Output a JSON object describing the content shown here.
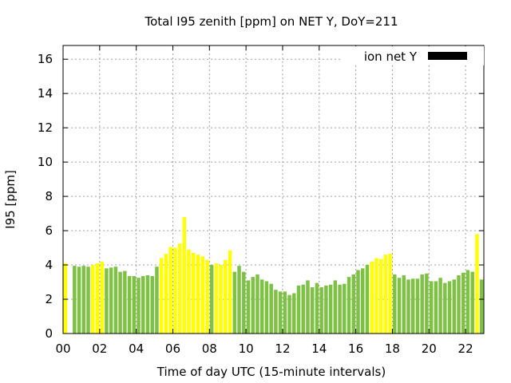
{
  "chart_data": {
    "type": "bar",
    "title": "Total I95 zenith [ppm] on NET Y, DoY=211",
    "xlabel": "Time of day UTC (15-minute intervals)",
    "ylabel": "I95 [ppm]",
    "ylim": [
      0,
      16.8
    ],
    "yticks": [
      0,
      2,
      4,
      6,
      8,
      10,
      12,
      14,
      16
    ],
    "xticks": [
      "00",
      "02",
      "04",
      "06",
      "08",
      "10",
      "12",
      "14",
      "16",
      "18",
      "20",
      "22"
    ],
    "xlim_hours": [
      0,
      22.75
    ],
    "grid": true,
    "legend": {
      "position": "top-right",
      "label": "ion net Y",
      "color": "#000000"
    },
    "colors": {
      "green": "#7dc243",
      "yellow": "#ffff00"
    },
    "bars": [
      {
        "h": 0.0,
        "v": 4.1,
        "c": "yellow"
      },
      {
        "h": 0.25,
        "v": 0.0,
        "c": "yellow"
      },
      {
        "h": 0.5,
        "v": 3.95,
        "c": "green"
      },
      {
        "h": 0.75,
        "v": 3.9,
        "c": "green"
      },
      {
        "h": 1.0,
        "v": 3.95,
        "c": "green"
      },
      {
        "h": 1.25,
        "v": 3.9,
        "c": "green"
      },
      {
        "h": 1.5,
        "v": 4.0,
        "c": "yellow"
      },
      {
        "h": 1.75,
        "v": 4.1,
        "c": "yellow"
      },
      {
        "h": 2.0,
        "v": 4.2,
        "c": "yellow"
      },
      {
        "h": 2.25,
        "v": 3.8,
        "c": "green"
      },
      {
        "h": 2.5,
        "v": 3.85,
        "c": "green"
      },
      {
        "h": 2.75,
        "v": 3.9,
        "c": "green"
      },
      {
        "h": 3.0,
        "v": 3.6,
        "c": "green"
      },
      {
        "h": 3.25,
        "v": 3.65,
        "c": "green"
      },
      {
        "h": 3.5,
        "v": 3.35,
        "c": "green"
      },
      {
        "h": 3.75,
        "v": 3.35,
        "c": "green"
      },
      {
        "h": 4.0,
        "v": 3.25,
        "c": "green"
      },
      {
        "h": 4.25,
        "v": 3.35,
        "c": "green"
      },
      {
        "h": 4.5,
        "v": 3.4,
        "c": "green"
      },
      {
        "h": 4.75,
        "v": 3.35,
        "c": "green"
      },
      {
        "h": 5.0,
        "v": 3.9,
        "c": "green"
      },
      {
        "h": 5.25,
        "v": 4.4,
        "c": "yellow"
      },
      {
        "h": 5.5,
        "v": 4.65,
        "c": "yellow"
      },
      {
        "h": 5.75,
        "v": 5.05,
        "c": "yellow"
      },
      {
        "h": 6.0,
        "v": 5.0,
        "c": "yellow"
      },
      {
        "h": 6.25,
        "v": 5.25,
        "c": "yellow"
      },
      {
        "h": 6.5,
        "v": 6.8,
        "c": "yellow"
      },
      {
        "h": 6.75,
        "v": 4.9,
        "c": "yellow"
      },
      {
        "h": 7.0,
        "v": 4.7,
        "c": "yellow"
      },
      {
        "h": 7.25,
        "v": 4.6,
        "c": "yellow"
      },
      {
        "h": 7.5,
        "v": 4.5,
        "c": "yellow"
      },
      {
        "h": 7.75,
        "v": 4.3,
        "c": "yellow"
      },
      {
        "h": 8.0,
        "v": 4.0,
        "c": "green"
      },
      {
        "h": 8.25,
        "v": 4.1,
        "c": "yellow"
      },
      {
        "h": 8.5,
        "v": 4.0,
        "c": "yellow"
      },
      {
        "h": 8.75,
        "v": 4.3,
        "c": "yellow"
      },
      {
        "h": 9.0,
        "v": 4.85,
        "c": "yellow"
      },
      {
        "h": 9.25,
        "v": 3.6,
        "c": "green"
      },
      {
        "h": 9.5,
        "v": 3.95,
        "c": "green"
      },
      {
        "h": 9.75,
        "v": 3.6,
        "c": "green"
      },
      {
        "h": 10.0,
        "v": 3.1,
        "c": "green"
      },
      {
        "h": 10.25,
        "v": 3.3,
        "c": "green"
      },
      {
        "h": 10.5,
        "v": 3.45,
        "c": "green"
      },
      {
        "h": 10.75,
        "v": 3.15,
        "c": "green"
      },
      {
        "h": 11.0,
        "v": 3.05,
        "c": "green"
      },
      {
        "h": 11.25,
        "v": 2.9,
        "c": "green"
      },
      {
        "h": 11.5,
        "v": 2.55,
        "c": "green"
      },
      {
        "h": 11.75,
        "v": 2.45,
        "c": "green"
      },
      {
        "h": 12.0,
        "v": 2.45,
        "c": "green"
      },
      {
        "h": 12.25,
        "v": 2.25,
        "c": "green"
      },
      {
        "h": 12.5,
        "v": 2.35,
        "c": "green"
      },
      {
        "h": 12.75,
        "v": 2.8,
        "c": "green"
      },
      {
        "h": 13.0,
        "v": 2.85,
        "c": "green"
      },
      {
        "h": 13.25,
        "v": 3.1,
        "c": "green"
      },
      {
        "h": 13.5,
        "v": 2.7,
        "c": "green"
      },
      {
        "h": 13.75,
        "v": 2.95,
        "c": "green"
      },
      {
        "h": 14.0,
        "v": 2.7,
        "c": "green"
      },
      {
        "h": 14.25,
        "v": 2.8,
        "c": "green"
      },
      {
        "h": 14.5,
        "v": 2.85,
        "c": "green"
      },
      {
        "h": 14.75,
        "v": 3.1,
        "c": "green"
      },
      {
        "h": 15.0,
        "v": 2.85,
        "c": "green"
      },
      {
        "h": 15.25,
        "v": 2.9,
        "c": "green"
      },
      {
        "h": 15.5,
        "v": 3.3,
        "c": "green"
      },
      {
        "h": 15.75,
        "v": 3.45,
        "c": "green"
      },
      {
        "h": 16.0,
        "v": 3.7,
        "c": "green"
      },
      {
        "h": 16.25,
        "v": 3.8,
        "c": "green"
      },
      {
        "h": 16.5,
        "v": 4.0,
        "c": "green"
      },
      {
        "h": 16.75,
        "v": 4.2,
        "c": "yellow"
      },
      {
        "h": 17.0,
        "v": 4.4,
        "c": "yellow"
      },
      {
        "h": 17.25,
        "v": 4.35,
        "c": "yellow"
      },
      {
        "h": 17.5,
        "v": 4.6,
        "c": "yellow"
      },
      {
        "h": 17.75,
        "v": 4.65,
        "c": "yellow"
      },
      {
        "h": 18.0,
        "v": 3.45,
        "c": "green"
      },
      {
        "h": 18.25,
        "v": 3.25,
        "c": "green"
      },
      {
        "h": 18.5,
        "v": 3.4,
        "c": "green"
      },
      {
        "h": 18.75,
        "v": 3.15,
        "c": "green"
      },
      {
        "h": 19.0,
        "v": 3.2,
        "c": "green"
      },
      {
        "h": 19.25,
        "v": 3.2,
        "c": "green"
      },
      {
        "h": 19.5,
        "v": 3.45,
        "c": "green"
      },
      {
        "h": 19.75,
        "v": 3.5,
        "c": "green"
      },
      {
        "h": 20.0,
        "v": 3.05,
        "c": "green"
      },
      {
        "h": 20.25,
        "v": 3.05,
        "c": "green"
      },
      {
        "h": 20.5,
        "v": 3.25,
        "c": "green"
      },
      {
        "h": 20.75,
        "v": 2.95,
        "c": "green"
      },
      {
        "h": 21.0,
        "v": 3.05,
        "c": "green"
      },
      {
        "h": 21.25,
        "v": 3.15,
        "c": "green"
      },
      {
        "h": 21.5,
        "v": 3.4,
        "c": "green"
      },
      {
        "h": 21.75,
        "v": 3.55,
        "c": "green"
      },
      {
        "h": 22.0,
        "v": 3.7,
        "c": "green"
      },
      {
        "h": 22.25,
        "v": 3.6,
        "c": "green"
      },
      {
        "h": 22.5,
        "v": 5.8,
        "c": "yellow"
      },
      {
        "h": 22.75,
        "v": 3.15,
        "c": "green"
      }
    ]
  }
}
